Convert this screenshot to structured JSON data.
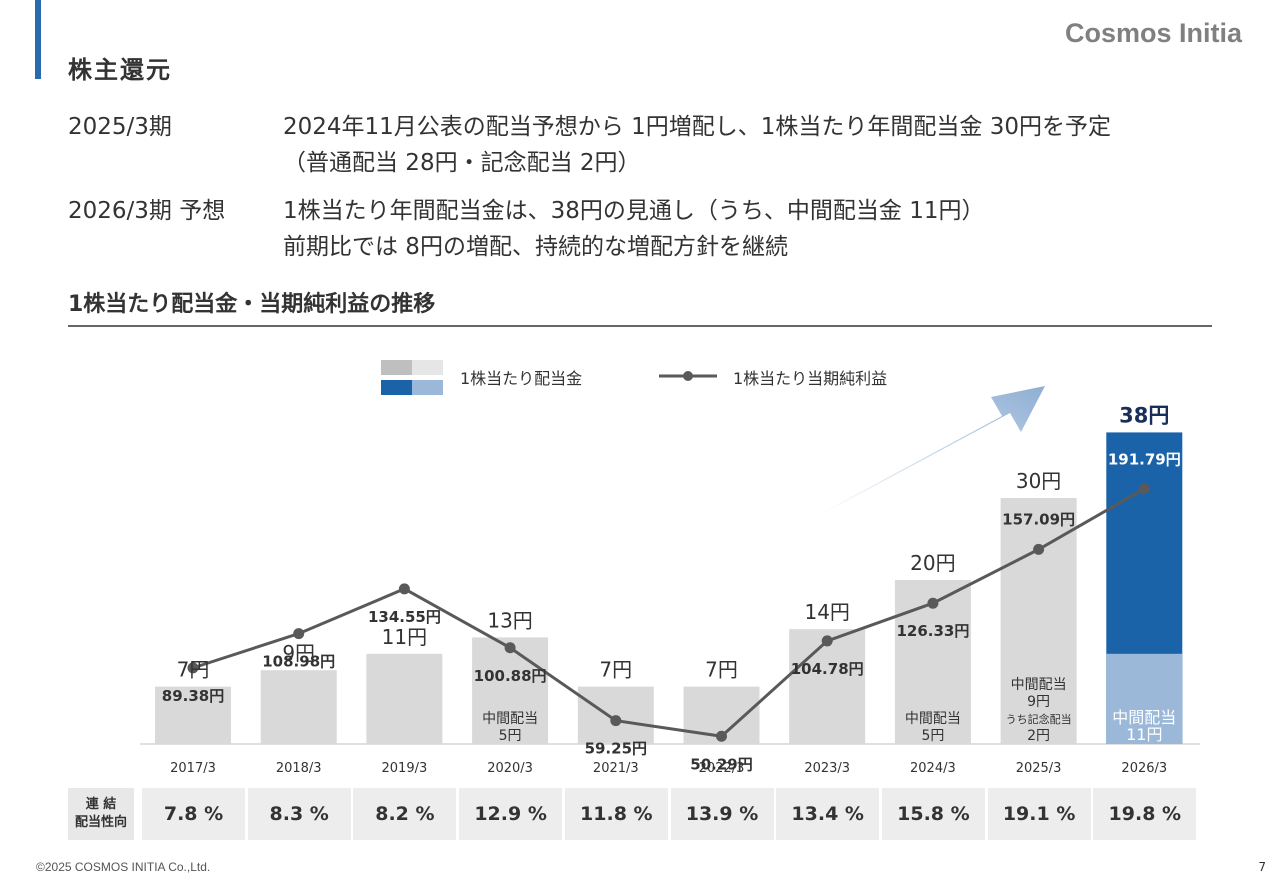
{
  "header": {
    "title": "株主還元",
    "brand": "Cosmos Initia"
  },
  "summary": [
    {
      "label": "2025/3期",
      "lines": [
        "2024年11月公表の配当予想から 1円増配し、1株当たり年間配当金 30円を予定",
        "（普通配当 28円・記念配当 2円）"
      ]
    },
    {
      "label": "2026/3期 予想",
      "lines": [
        "1株当たり年間配当金は、38円の見通し（うち、中間配当金 11円）",
        "前期比では 8円の増配、持続的な増配方針を継続"
      ]
    }
  ],
  "section_title": "1株当たり配当金・当期純利益の推移",
  "colors": {
    "bar": "#d9d9d9",
    "bar_forecast": "#1b63a8",
    "bar_forecast_interim": "#9bb8d9",
    "line": "#595959",
    "accent": "#2a6bb0",
    "arrow": "#8eaed3"
  },
  "chart_data": {
    "type": "bar",
    "legend": {
      "bar_label": "1株当たり配当金",
      "line_label": "1株当たり当期純利益",
      "position": "top"
    },
    "categories": [
      "2017/3",
      "2018/3",
      "2019/3",
      "2020/3",
      "2021/3",
      "2022/3",
      "2023/3",
      "2024/3",
      "2025/3",
      "2026/3"
    ],
    "dividend": {
      "values": [
        7,
        9,
        11,
        13,
        7,
        7,
        14,
        20,
        30,
        38
      ],
      "labels": [
        "7円",
        "9円",
        "11円",
        "13円",
        "7円",
        "7円",
        "14円",
        "20円",
        "30円",
        "38円"
      ]
    },
    "interim": [
      null,
      null,
      null,
      {
        "value": 5,
        "lines": [
          "中間配当",
          "5円"
        ]
      },
      null,
      null,
      null,
      {
        "value": 5,
        "lines": [
          "中間配当",
          "5円"
        ]
      },
      {
        "value": 9,
        "lines": [
          "中間配当",
          "9円",
          "うち記念配当",
          "2円"
        ]
      },
      {
        "value": 11,
        "lines": [
          "中間配当",
          "11円"
        ]
      }
    ],
    "eps": {
      "values": [
        89.38,
        108.98,
        134.55,
        100.88,
        59.25,
        50.29,
        104.78,
        126.33,
        157.09,
        191.79
      ],
      "labels": [
        "89.38円",
        "108.98円",
        "134.55円",
        "100.88円",
        "59.25円",
        "50.29円",
        "104.78円",
        "126.33円",
        "157.09円",
        "191.79円"
      ]
    },
    "forecast_index": 9
  },
  "payout": {
    "header": [
      "連 結",
      "配当性向"
    ],
    "values": [
      "7.8 %",
      "8.3 %",
      "8.2 %",
      "12.9 %",
      "11.8 %",
      "13.9 %",
      "13.4 %",
      "15.8 %",
      "19.1 %",
      "19.8 %"
    ]
  },
  "footer": "©2025 COSMOS INITIA Co.,Ltd.",
  "page_number": "7"
}
